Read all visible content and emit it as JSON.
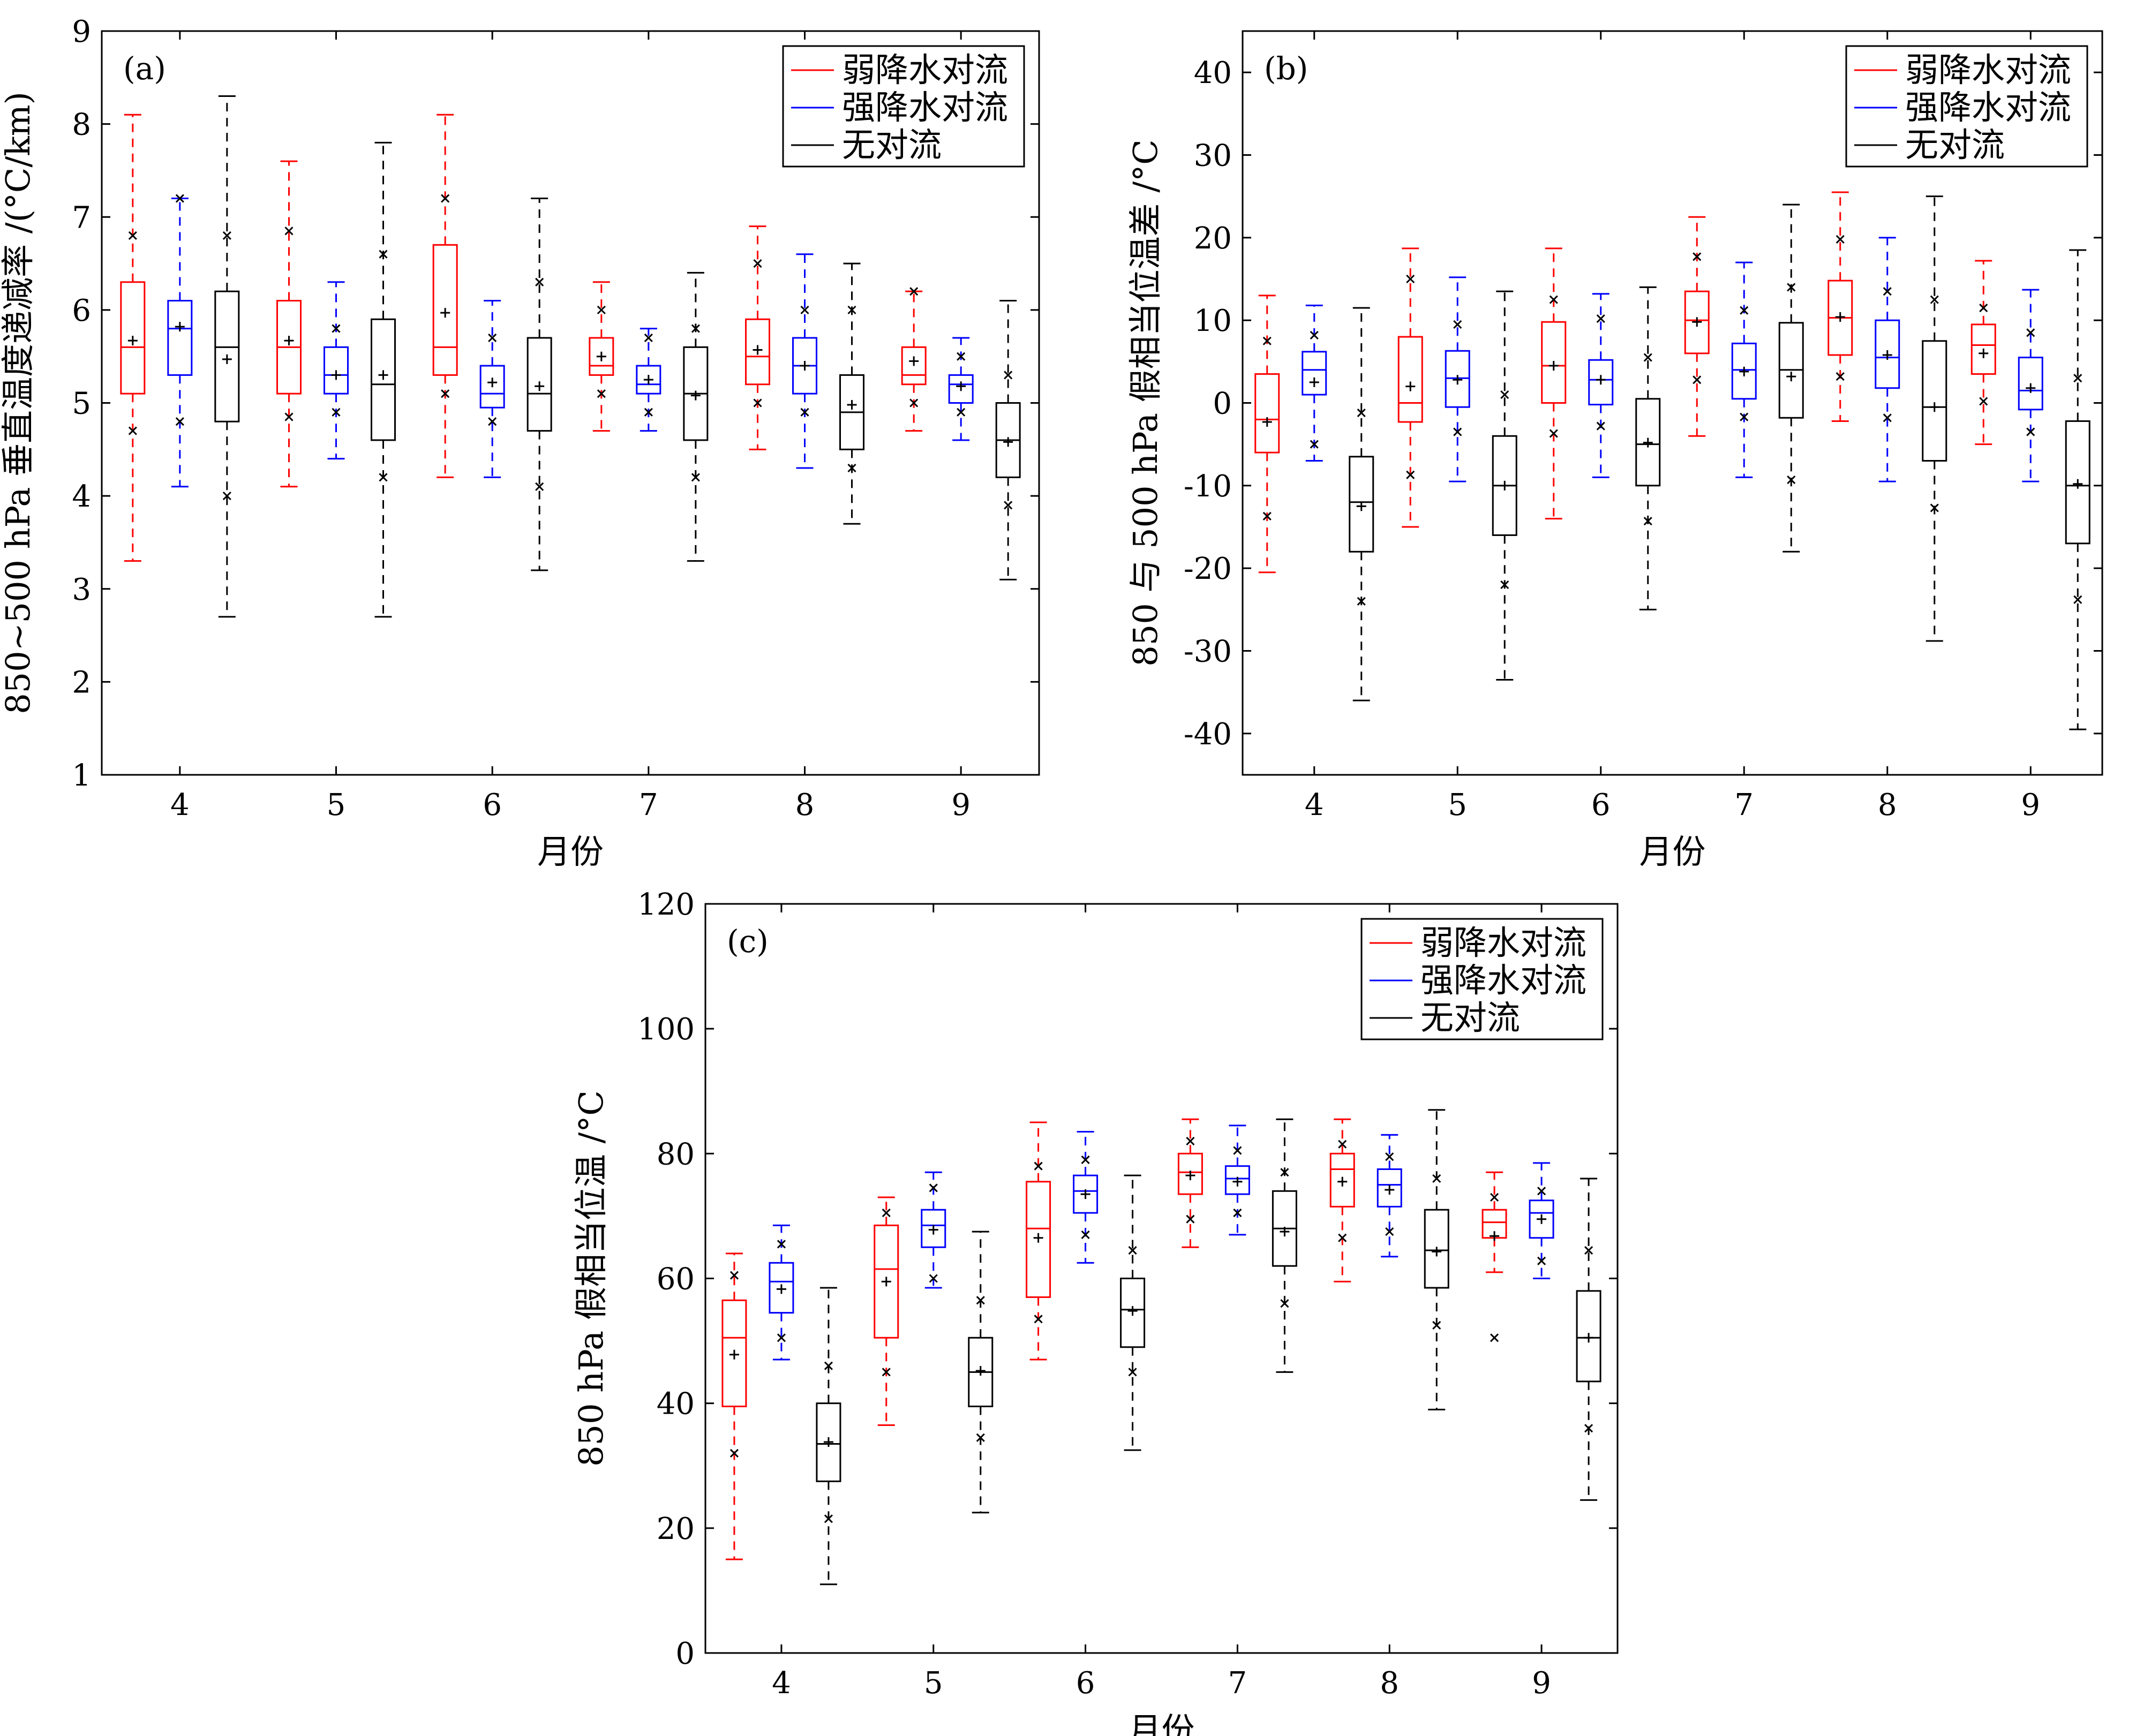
{
  "chart_data": [
    {
      "type": "box",
      "panel_label": "(a)",
      "xlabel": "月份",
      "ylabel": "850~500 hPa 垂直温度递减率 /(°C/km)",
      "categories": [
        "4",
        "5",
        "6",
        "7",
        "8",
        "9"
      ],
      "ylim": [
        1,
        9
      ],
      "yticks": [
        1,
        2,
        3,
        4,
        5,
        6,
        7,
        8,
        9
      ],
      "legend_position": "top-right",
      "series": [
        {
          "name": "弱降水对流",
          "color": "#ff0000",
          "boxes": [
            {
              "whisker_low": 3.3,
              "q1": 5.1,
              "median": 5.6,
              "q3": 6.3,
              "whisker_high": 8.1,
              "mean": 5.67,
              "p_low": 4.7,
              "p_high": 6.8
            },
            {
              "whisker_low": 4.1,
              "q1": 5.1,
              "median": 5.6,
              "q3": 6.1,
              "whisker_high": 7.6,
              "mean": 5.67,
              "p_low": 4.85,
              "p_high": 6.85
            },
            {
              "whisker_low": 4.2,
              "q1": 5.3,
              "median": 5.6,
              "q3": 6.7,
              "whisker_high": 8.1,
              "mean": 5.97,
              "p_low": 5.1,
              "p_high": 7.2
            },
            {
              "whisker_low": 4.7,
              "q1": 5.3,
              "median": 5.4,
              "q3": 5.7,
              "whisker_high": 6.3,
              "mean": 5.5,
              "p_low": 5.1,
              "p_high": 6.0
            },
            {
              "whisker_low": 4.5,
              "q1": 5.2,
              "median": 5.5,
              "q3": 5.9,
              "whisker_high": 6.9,
              "mean": 5.57,
              "p_low": 5.0,
              "p_high": 6.5
            },
            {
              "whisker_low": 4.7,
              "q1": 5.2,
              "median": 5.3,
              "q3": 5.6,
              "whisker_high": 6.2,
              "mean": 5.45,
              "p_low": 5.0,
              "p_high": 6.2
            }
          ]
        },
        {
          "name": "强降水对流",
          "color": "#0000ff",
          "boxes": [
            {
              "whisker_low": 4.1,
              "q1": 5.3,
              "median": 5.8,
              "q3": 6.1,
              "whisker_high": 7.2,
              "mean": 5.82,
              "p_low": 4.8,
              "p_high": 7.2
            },
            {
              "whisker_low": 4.4,
              "q1": 5.1,
              "median": 5.3,
              "q3": 5.6,
              "whisker_high": 6.3,
              "mean": 5.3,
              "p_low": 4.9,
              "p_high": 5.8
            },
            {
              "whisker_low": 4.2,
              "q1": 4.95,
              "median": 5.1,
              "q3": 5.4,
              "whisker_high": 6.1,
              "mean": 5.22,
              "p_low": 4.8,
              "p_high": 5.7
            },
            {
              "whisker_low": 4.7,
              "q1": 5.1,
              "median": 5.2,
              "q3": 5.4,
              "whisker_high": 5.8,
              "mean": 5.25,
              "p_low": 4.9,
              "p_high": 5.7
            },
            {
              "whisker_low": 4.3,
              "q1": 5.1,
              "median": 5.4,
              "q3": 5.7,
              "whisker_high": 6.6,
              "mean": 5.4,
              "p_low": 4.9,
              "p_high": 6.0
            },
            {
              "whisker_low": 4.6,
              "q1": 5.0,
              "median": 5.2,
              "q3": 5.3,
              "whisker_high": 5.7,
              "mean": 5.18,
              "p_low": 4.9,
              "p_high": 5.5
            }
          ]
        },
        {
          "name": "无对流",
          "color": "#000000",
          "boxes": [
            {
              "whisker_low": 2.7,
              "q1": 4.8,
              "median": 5.6,
              "q3": 6.2,
              "whisker_high": 8.3,
              "mean": 5.47,
              "p_low": 4.0,
              "p_high": 6.8
            },
            {
              "whisker_low": 2.7,
              "q1": 4.6,
              "median": 5.2,
              "q3": 5.9,
              "whisker_high": 7.8,
              "mean": 5.3,
              "p_low": 4.2,
              "p_high": 6.6
            },
            {
              "whisker_low": 3.2,
              "q1": 4.7,
              "median": 5.1,
              "q3": 5.7,
              "whisker_high": 7.2,
              "mean": 5.18,
              "p_low": 4.1,
              "p_high": 6.3
            },
            {
              "whisker_low": 3.3,
              "q1": 4.6,
              "median": 5.1,
              "q3": 5.6,
              "whisker_high": 6.4,
              "mean": 5.08,
              "p_low": 4.2,
              "p_high": 5.8
            },
            {
              "whisker_low": 3.7,
              "q1": 4.5,
              "median": 4.9,
              "q3": 5.3,
              "whisker_high": 6.5,
              "mean": 4.98,
              "p_low": 4.3,
              "p_high": 6.0
            },
            {
              "whisker_low": 3.1,
              "q1": 4.2,
              "median": 4.6,
              "q3": 5.0,
              "whisker_high": 6.1,
              "mean": 4.58,
              "p_low": 3.9,
              "p_high": 5.3
            }
          ]
        }
      ]
    },
    {
      "type": "box",
      "panel_label": "(b)",
      "xlabel": "月份",
      "ylabel": "850 与 500 hPa 假相当位温差 /°C",
      "categories": [
        "4",
        "5",
        "6",
        "7",
        "8",
        "9"
      ],
      "ylim": [
        -45,
        45
      ],
      "yticks": [
        -40,
        -30,
        -20,
        -10,
        0,
        10,
        20,
        30,
        40
      ],
      "legend_position": "top-right",
      "series": [
        {
          "name": "弱降水对流",
          "color": "#ff0000",
          "boxes": [
            {
              "whisker_low": -20.5,
              "q1": -6,
              "median": -2,
              "q3": 3.5,
              "whisker_high": 13,
              "mean": -2.3,
              "p_low": -13.7,
              "p_high": 7.5
            },
            {
              "whisker_low": -15,
              "q1": -2.3,
              "median": 0,
              "q3": 8,
              "whisker_high": 18.7,
              "mean": 2,
              "p_low": -8.7,
              "p_high": 15
            },
            {
              "whisker_low": -14,
              "q1": 0,
              "median": 4.5,
              "q3": 9.8,
              "whisker_high": 18.7,
              "mean": 4.5,
              "p_low": -3.7,
              "p_high": 12.5
            },
            {
              "whisker_low": -4,
              "q1": 6,
              "median": 10,
              "q3": 13.5,
              "whisker_high": 22.5,
              "mean": 9.8,
              "p_low": 2.8,
              "p_high": 17.7
            },
            {
              "whisker_low": -2.2,
              "q1": 5.8,
              "median": 10.3,
              "q3": 14.8,
              "whisker_high": 25.5,
              "mean": 10.4,
              "p_low": 3.2,
              "p_high": 19.8
            },
            {
              "whisker_low": -5,
              "q1": 3.5,
              "median": 7,
              "q3": 9.5,
              "whisker_high": 17.2,
              "mean": 6,
              "p_low": 0.2,
              "p_high": 11.5
            }
          ]
        },
        {
          "name": "强降水对流",
          "color": "#0000ff",
          "boxes": [
            {
              "whisker_low": -7,
              "q1": 1,
              "median": 4,
              "q3": 6.2,
              "whisker_high": 11.8,
              "mean": 2.5,
              "p_low": -5,
              "p_high": 8.2
            },
            {
              "whisker_low": -9.5,
              "q1": -0.5,
              "median": 3,
              "q3": 6.3,
              "whisker_high": 15.2,
              "mean": 2.8,
              "p_low": -3.5,
              "p_high": 9.5
            },
            {
              "whisker_low": -9,
              "q1": -0.2,
              "median": 2.8,
              "q3": 5.2,
              "whisker_high": 13.2,
              "mean": 2.8,
              "p_low": -2.8,
              "p_high": 10.2
            },
            {
              "whisker_low": -9,
              "q1": 0.5,
              "median": 4,
              "q3": 7.2,
              "whisker_high": 17,
              "mean": 3.8,
              "p_low": -1.7,
              "p_high": 11.2
            },
            {
              "whisker_low": -9.5,
              "q1": 1.8,
              "median": 5.5,
              "q3": 10,
              "whisker_high": 20,
              "mean": 5.8,
              "p_low": -1.8,
              "p_high": 13.5
            },
            {
              "whisker_low": -9.5,
              "q1": -0.8,
              "median": 1.5,
              "q3": 5.5,
              "whisker_high": 13.7,
              "mean": 1.8,
              "p_low": -3.5,
              "p_high": 8.5
            }
          ]
        },
        {
          "name": "无对流",
          "color": "#000000",
          "boxes": [
            {
              "whisker_low": -36,
              "q1": -18,
              "median": -12,
              "q3": -6.5,
              "whisker_high": 11.5,
              "mean": -12.5,
              "p_low": -24,
              "p_high": -1.2
            },
            {
              "whisker_low": -33.5,
              "q1": -16,
              "median": -10,
              "q3": -4,
              "whisker_high": 13.5,
              "mean": -10,
              "p_low": -22,
              "p_high": 1
            },
            {
              "whisker_low": -25,
              "q1": -10,
              "median": -5,
              "q3": 0.5,
              "whisker_high": 14,
              "mean": -4.8,
              "p_low": -14.3,
              "p_high": 5.5
            },
            {
              "whisker_low": -18,
              "q1": -1.8,
              "median": 4,
              "q3": 9.7,
              "whisker_high": 24,
              "mean": 3.2,
              "p_low": -9.3,
              "p_high": 14
            },
            {
              "whisker_low": -28.8,
              "q1": -7,
              "median": -0.5,
              "q3": 7.5,
              "whisker_high": 25,
              "mean": -0.5,
              "p_low": -12.7,
              "p_high": 12.5
            },
            {
              "whisker_low": -39.5,
              "q1": -17,
              "median": -10,
              "q3": -2.2,
              "whisker_high": 18.5,
              "mean": -9.8,
              "p_low": -23.8,
              "p_high": 3
            }
          ]
        }
      ]
    },
    {
      "type": "box",
      "panel_label": "(c)",
      "xlabel": "月份",
      "ylabel": "850 hPa 假相当位温 /°C",
      "categories": [
        "4",
        "5",
        "6",
        "7",
        "8",
        "9"
      ],
      "ylim": [
        0,
        120
      ],
      "yticks": [
        0,
        20,
        40,
        60,
        80,
        100,
        120
      ],
      "legend_position": "top-right",
      "series": [
        {
          "name": "弱降水对流",
          "color": "#ff0000",
          "boxes": [
            {
              "whisker_low": 15,
              "q1": 39.5,
              "median": 50.5,
              "q3": 56.5,
              "whisker_high": 64,
              "mean": 47.8,
              "p_low": 32,
              "p_high": 60.5
            },
            {
              "whisker_low": 36.5,
              "q1": 50.5,
              "median": 61.5,
              "q3": 68.5,
              "whisker_high": 73,
              "mean": 59.5,
              "p_low": 45,
              "p_high": 70.5
            },
            {
              "whisker_low": 47,
              "q1": 57,
              "median": 68,
              "q3": 75.5,
              "whisker_high": 85,
              "mean": 66.5,
              "p_low": 53.5,
              "p_high": 78
            },
            {
              "whisker_low": 65,
              "q1": 73.5,
              "median": 77,
              "q3": 80,
              "whisker_high": 85.5,
              "mean": 76.5,
              "p_low": 69.5,
              "p_high": 82
            },
            {
              "whisker_low": 59.5,
              "q1": 71.5,
              "median": 77.5,
              "q3": 80,
              "whisker_high": 85.5,
              "mean": 75.5,
              "p_low": 66.5,
              "p_high": 81.5
            },
            {
              "whisker_low": 61,
              "q1": 66.5,
              "median": 69,
              "q3": 71,
              "whisker_high": 77,
              "mean": 66.8,
              "p_low": 50.5,
              "p_high": 73
            }
          ]
        },
        {
          "name": "强降水对流",
          "color": "#0000ff",
          "boxes": [
            {
              "whisker_low": 47,
              "q1": 54.5,
              "median": 59.5,
              "q3": 62.5,
              "whisker_high": 68.5,
              "mean": 58.3,
              "p_low": 50.5,
              "p_high": 65.5
            },
            {
              "whisker_low": 58.5,
              "q1": 65,
              "median": 68.5,
              "q3": 71,
              "whisker_high": 77,
              "mean": 67.8,
              "p_low": 60,
              "p_high": 74.5
            },
            {
              "whisker_low": 62.5,
              "q1": 70.5,
              "median": 74,
              "q3": 76.5,
              "whisker_high": 83.5,
              "mean": 73.5,
              "p_low": 67,
              "p_high": 79
            },
            {
              "whisker_low": 67,
              "q1": 73.5,
              "median": 76,
              "q3": 78,
              "whisker_high": 84.5,
              "mean": 75.5,
              "p_low": 70.5,
              "p_high": 80.5
            },
            {
              "whisker_low": 63.5,
              "q1": 71.5,
              "median": 75,
              "q3": 77.5,
              "whisker_high": 83,
              "mean": 74.2,
              "p_low": 67.5,
              "p_high": 79.5
            },
            {
              "whisker_low": 60,
              "q1": 66.5,
              "median": 70.5,
              "q3": 72.5,
              "whisker_high": 78.5,
              "mean": 69.5,
              "p_low": 62.8,
              "p_high": 74
            }
          ]
        },
        {
          "name": "无对流",
          "color": "#000000",
          "boxes": [
            {
              "whisker_low": 11,
              "q1": 27.5,
              "median": 33.5,
              "q3": 40,
              "whisker_high": 58.5,
              "mean": 33.8,
              "p_low": 21.5,
              "p_high": 46
            },
            {
              "whisker_low": 22.5,
              "q1": 39.5,
              "median": 45,
              "q3": 50.5,
              "whisker_high": 67.5,
              "mean": 45.2,
              "p_low": 34.5,
              "p_high": 56.5
            },
            {
              "whisker_low": 32.5,
              "q1": 49,
              "median": 55,
              "q3": 60,
              "whisker_high": 76.5,
              "mean": 54.8,
              "p_low": 45,
              "p_high": 64.5
            },
            {
              "whisker_low": 45,
              "q1": 62,
              "median": 68,
              "q3": 74,
              "whisker_high": 85.5,
              "mean": 67.5,
              "p_low": 56,
              "p_high": 77
            },
            {
              "whisker_low": 39,
              "q1": 58.5,
              "median": 64.5,
              "q3": 71,
              "whisker_high": 87,
              "mean": 64.3,
              "p_low": 52.5,
              "p_high": 76
            },
            {
              "whisker_low": 24.5,
              "q1": 43.5,
              "median": 50.5,
              "q3": 58,
              "whisker_high": 76,
              "mean": 50.5,
              "p_low": 36,
              "p_high": 64.5
            }
          ]
        }
      ]
    }
  ]
}
